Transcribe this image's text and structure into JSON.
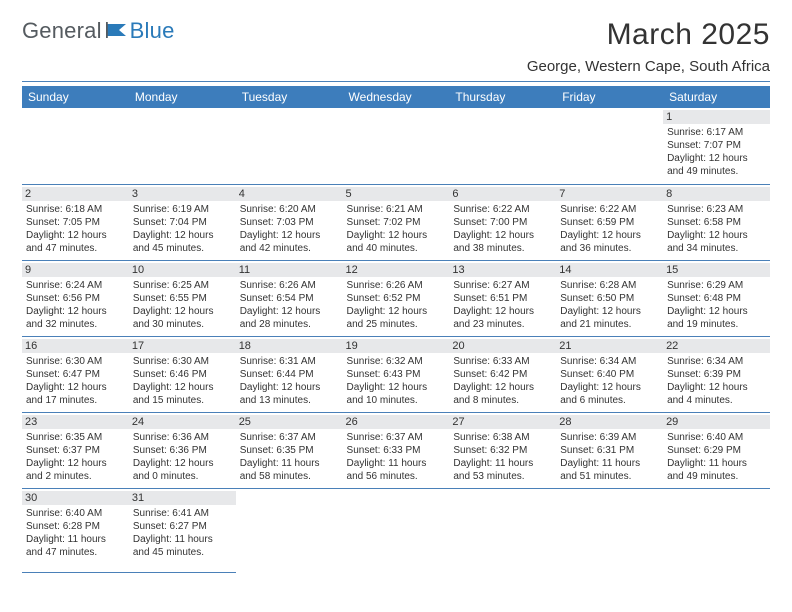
{
  "brand": {
    "word1": "General",
    "word2": "Blue",
    "color1": "#555b60",
    "color2": "#2a7ab9"
  },
  "title": {
    "month": "March 2025",
    "location": "George, Western Cape, South Africa"
  },
  "headers": [
    "Sunday",
    "Monday",
    "Tuesday",
    "Wednesday",
    "Thursday",
    "Friday",
    "Saturday"
  ],
  "colors": {
    "header_bg": "#3d7dbc",
    "header_fg": "#ffffff",
    "rule": "#4a80b8",
    "daybar": "#e7e8ea"
  },
  "weeks": [
    [
      null,
      null,
      null,
      null,
      null,
      null,
      {
        "n": "1",
        "r": "6:17 AM",
        "s": "7:07 PM",
        "d": "12 hours and 49 minutes."
      }
    ],
    [
      {
        "n": "2",
        "r": "6:18 AM",
        "s": "7:05 PM",
        "d": "12 hours and 47 minutes."
      },
      {
        "n": "3",
        "r": "6:19 AM",
        "s": "7:04 PM",
        "d": "12 hours and 45 minutes."
      },
      {
        "n": "4",
        "r": "6:20 AM",
        "s": "7:03 PM",
        "d": "12 hours and 42 minutes."
      },
      {
        "n": "5",
        "r": "6:21 AM",
        "s": "7:02 PM",
        "d": "12 hours and 40 minutes."
      },
      {
        "n": "6",
        "r": "6:22 AM",
        "s": "7:00 PM",
        "d": "12 hours and 38 minutes."
      },
      {
        "n": "7",
        "r": "6:22 AM",
        "s": "6:59 PM",
        "d": "12 hours and 36 minutes."
      },
      {
        "n": "8",
        "r": "6:23 AM",
        "s": "6:58 PM",
        "d": "12 hours and 34 minutes."
      }
    ],
    [
      {
        "n": "9",
        "r": "6:24 AM",
        "s": "6:56 PM",
        "d": "12 hours and 32 minutes."
      },
      {
        "n": "10",
        "r": "6:25 AM",
        "s": "6:55 PM",
        "d": "12 hours and 30 minutes."
      },
      {
        "n": "11",
        "r": "6:26 AM",
        "s": "6:54 PM",
        "d": "12 hours and 28 minutes."
      },
      {
        "n": "12",
        "r": "6:26 AM",
        "s": "6:52 PM",
        "d": "12 hours and 25 minutes."
      },
      {
        "n": "13",
        "r": "6:27 AM",
        "s": "6:51 PM",
        "d": "12 hours and 23 minutes."
      },
      {
        "n": "14",
        "r": "6:28 AM",
        "s": "6:50 PM",
        "d": "12 hours and 21 minutes."
      },
      {
        "n": "15",
        "r": "6:29 AM",
        "s": "6:48 PM",
        "d": "12 hours and 19 minutes."
      }
    ],
    [
      {
        "n": "16",
        "r": "6:30 AM",
        "s": "6:47 PM",
        "d": "12 hours and 17 minutes."
      },
      {
        "n": "17",
        "r": "6:30 AM",
        "s": "6:46 PM",
        "d": "12 hours and 15 minutes."
      },
      {
        "n": "18",
        "r": "6:31 AM",
        "s": "6:44 PM",
        "d": "12 hours and 13 minutes."
      },
      {
        "n": "19",
        "r": "6:32 AM",
        "s": "6:43 PM",
        "d": "12 hours and 10 minutes."
      },
      {
        "n": "20",
        "r": "6:33 AM",
        "s": "6:42 PM",
        "d": "12 hours and 8 minutes."
      },
      {
        "n": "21",
        "r": "6:34 AM",
        "s": "6:40 PM",
        "d": "12 hours and 6 minutes."
      },
      {
        "n": "22",
        "r": "6:34 AM",
        "s": "6:39 PM",
        "d": "12 hours and 4 minutes."
      }
    ],
    [
      {
        "n": "23",
        "r": "6:35 AM",
        "s": "6:37 PM",
        "d": "12 hours and 2 minutes."
      },
      {
        "n": "24",
        "r": "6:36 AM",
        "s": "6:36 PM",
        "d": "12 hours and 0 minutes."
      },
      {
        "n": "25",
        "r": "6:37 AM",
        "s": "6:35 PM",
        "d": "11 hours and 58 minutes."
      },
      {
        "n": "26",
        "r": "6:37 AM",
        "s": "6:33 PM",
        "d": "11 hours and 56 minutes."
      },
      {
        "n": "27",
        "r": "6:38 AM",
        "s": "6:32 PM",
        "d": "11 hours and 53 minutes."
      },
      {
        "n": "28",
        "r": "6:39 AM",
        "s": "6:31 PM",
        "d": "11 hours and 51 minutes."
      },
      {
        "n": "29",
        "r": "6:40 AM",
        "s": "6:29 PM",
        "d": "11 hours and 49 minutes."
      }
    ],
    [
      {
        "n": "30",
        "r": "6:40 AM",
        "s": "6:28 PM",
        "d": "11 hours and 47 minutes."
      },
      {
        "n": "31",
        "r": "6:41 AM",
        "s": "6:27 PM",
        "d": "11 hours and 45 minutes."
      },
      null,
      null,
      null,
      null,
      null
    ]
  ],
  "labels": {
    "sunrise": "Sunrise: ",
    "sunset": "Sunset: ",
    "daylight": "Daylight: "
  }
}
